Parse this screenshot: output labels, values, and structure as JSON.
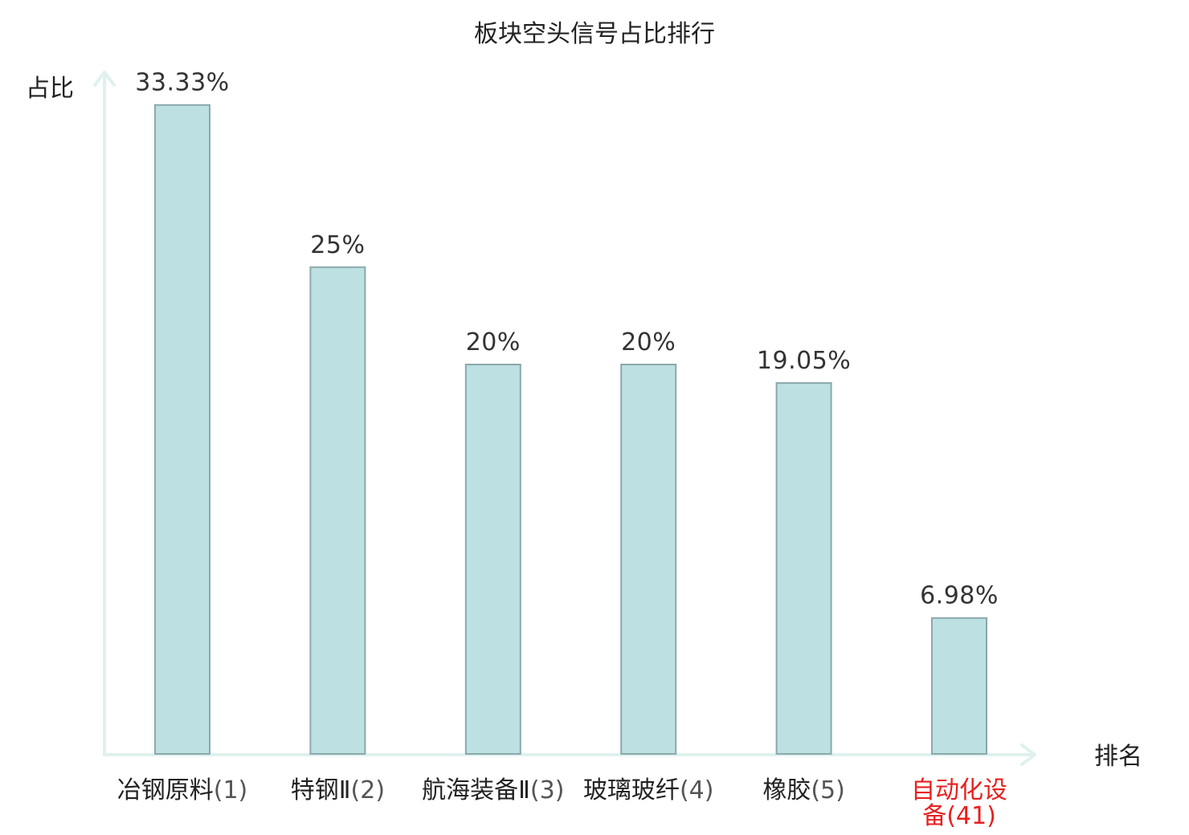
{
  "chart_data": {
    "type": "bar",
    "title": "板块空头信号占比排行",
    "ylabel": "占比",
    "xlabel": "排名",
    "ylim": [
      0,
      35
    ],
    "grid": false,
    "categories": [
      {
        "name": "冶钢原料",
        "rank": "(1)",
        "value": 33.33,
        "label": "33.33%",
        "highlight": false
      },
      {
        "name": "特钢Ⅱ",
        "rank": "(2)",
        "value": 25,
        "label": "25%",
        "highlight": false
      },
      {
        "name": "航海装备Ⅱ",
        "rank": "(3)",
        "value": 20,
        "label": "20%",
        "highlight": false
      },
      {
        "name": "玻璃玻纤",
        "rank": "(4)",
        "value": 20,
        "label": "20%",
        "highlight": false
      },
      {
        "name": "橡胶",
        "rank": "(5)",
        "value": 19.05,
        "label": "19.05%",
        "highlight": false
      },
      {
        "name": "自动化设备",
        "rank": "(41)",
        "value": 6.98,
        "label": "6.98%",
        "highlight": true
      }
    ],
    "colors": {
      "bar_fill": "#bde0e2",
      "bar_stroke": "#8aa9ab",
      "axis": "#dff1ef",
      "highlight": "#e8201f"
    }
  }
}
